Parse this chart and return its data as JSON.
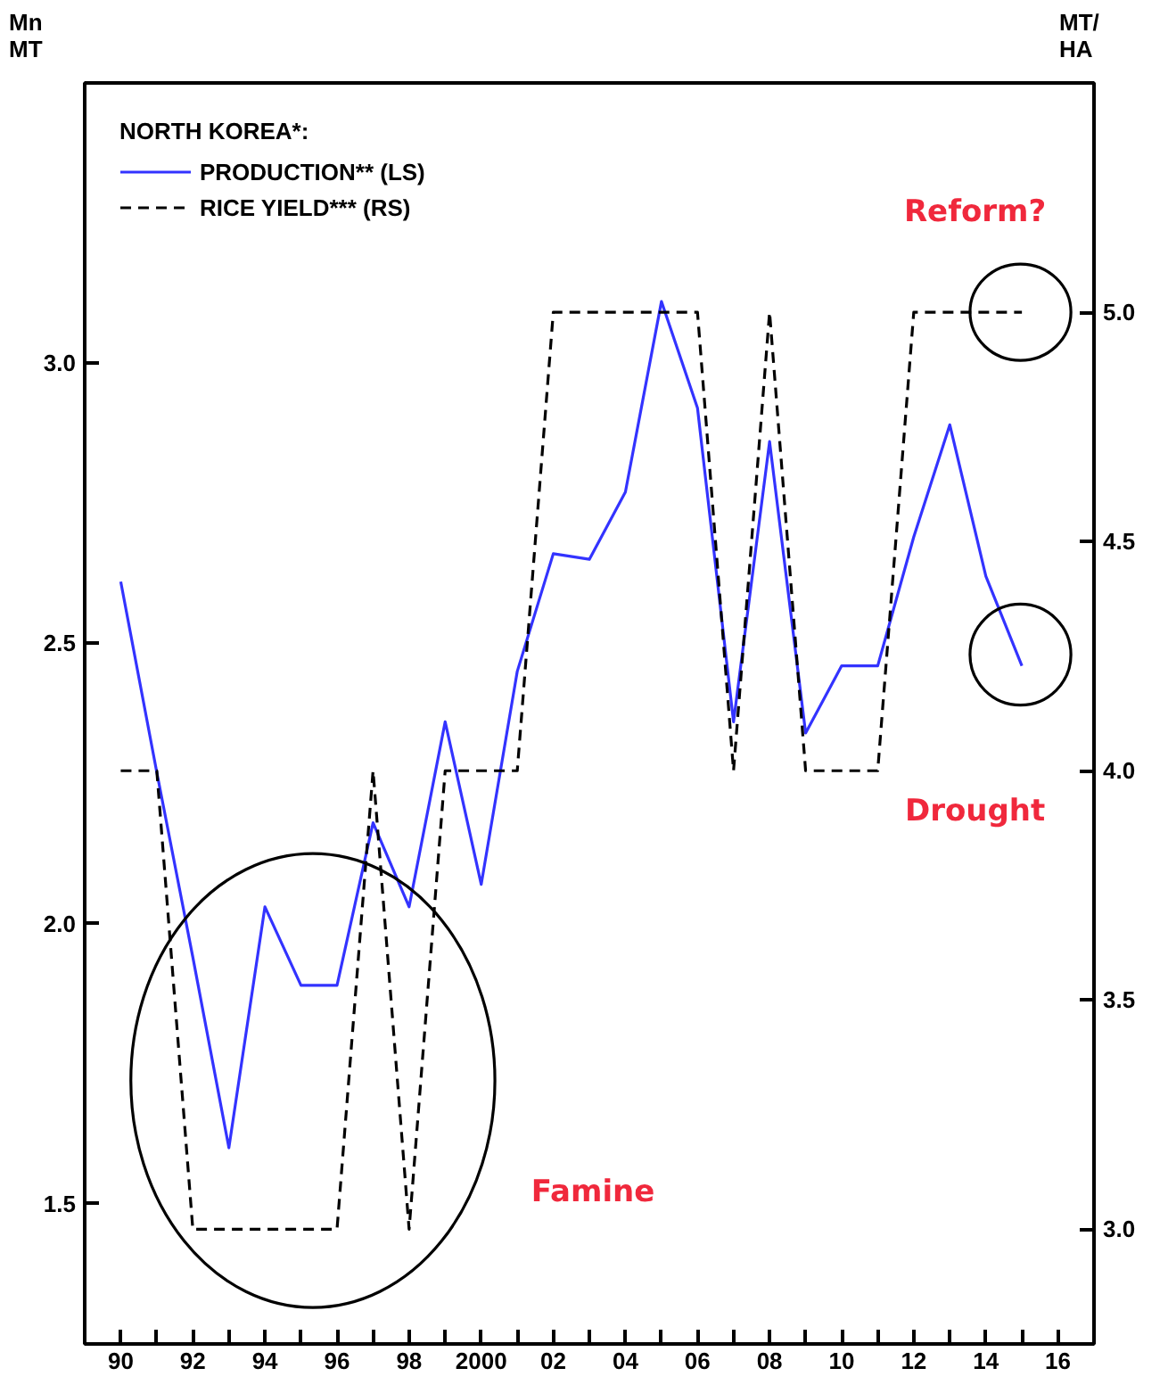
{
  "chart_data": {
    "type": "line",
    "ylabel": "Mn\nMT",
    "y2label": "MT/\nHA",
    "legend_title": "NORTH KOREA*:",
    "x": [
      1990,
      1991,
      1992,
      1993,
      1994,
      1995,
      1996,
      1997,
      1998,
      1999,
      2000,
      2001,
      2002,
      2003,
      2004,
      2005,
      2006,
      2007,
      2008,
      2009,
      2010,
      2011,
      2012,
      2013,
      2014,
      2015
    ],
    "series": [
      {
        "name": "PRODUCTION** (LS)",
        "color": "#3333ff",
        "line_style": "solid",
        "values": [
          2.61,
          2.27,
          1.94,
          1.6,
          2.03,
          1.89,
          1.89,
          2.18,
          2.03,
          2.36,
          2.07,
          2.45,
          2.66,
          2.65,
          2.77,
          3.11,
          2.92,
          2.36,
          2.86,
          2.34,
          2.46,
          2.46,
          2.69,
          2.89,
          2.62,
          2.46
        ]
      },
      {
        "name": "RICE YIELD*** (RS)",
        "color": "#000000",
        "line_style": "dashed",
        "axis": "y2",
        "values": [
          4.0,
          4.0,
          3.0,
          3.0,
          3.0,
          3.0,
          3.0,
          4.0,
          3.0,
          4.0,
          4.0,
          4.0,
          5.0,
          5.0,
          5.0,
          5.0,
          5.0,
          4.0,
          5.0,
          4.0,
          4.0,
          4.0,
          5.0,
          5.0,
          5.0,
          5.0
        ]
      }
    ],
    "xlim": [
      1989,
      2017
    ],
    "xticks": [
      {
        "value": 1990,
        "label": "90"
      },
      {
        "value": 1991,
        "label": null
      },
      {
        "value": 1992,
        "label": "92"
      },
      {
        "value": 1993,
        "label": null
      },
      {
        "value": 1994,
        "label": "94"
      },
      {
        "value": 1995,
        "label": null
      },
      {
        "value": 1996,
        "label": "96"
      },
      {
        "value": 1997,
        "label": null
      },
      {
        "value": 1998,
        "label": "98"
      },
      {
        "value": 1999,
        "label": null
      },
      {
        "value": 2000,
        "label": "2000"
      },
      {
        "value": 2001,
        "label": null
      },
      {
        "value": 2002,
        "label": "02"
      },
      {
        "value": 2003,
        "label": null
      },
      {
        "value": 2004,
        "label": "04"
      },
      {
        "value": 2005,
        "label": null
      },
      {
        "value": 2006,
        "label": "06"
      },
      {
        "value": 2007,
        "label": null
      },
      {
        "value": 2008,
        "label": "08"
      },
      {
        "value": 2009,
        "label": null
      },
      {
        "value": 2010,
        "label": "10"
      },
      {
        "value": 2011,
        "label": null
      },
      {
        "value": 2012,
        "label": "12"
      },
      {
        "value": 2013,
        "label": null
      },
      {
        "value": 2014,
        "label": "14"
      },
      {
        "value": 2015,
        "label": null
      },
      {
        "value": 2016,
        "label": "16"
      }
    ],
    "ylim": [
      1.25,
      3.5
    ],
    "yticks": [
      1.5,
      {
        "value": 2,
        "label": "2.0"
      },
      2.5,
      {
        "value": 3,
        "label": "3.0"
      }
    ],
    "y2lim": [
      2.75,
      5.5
    ],
    "y2ticks": [
      {
        "value": 3,
        "label": "3.0"
      },
      3.5,
      {
        "value": 4,
        "label": "4.0"
      },
      4.5,
      {
        "value": 5,
        "label": "5.0"
      }
    ],
    "annotations": [
      "Reform?",
      "Drought",
      "Famine"
    ],
    "grid": false,
    "legend": "top left"
  }
}
